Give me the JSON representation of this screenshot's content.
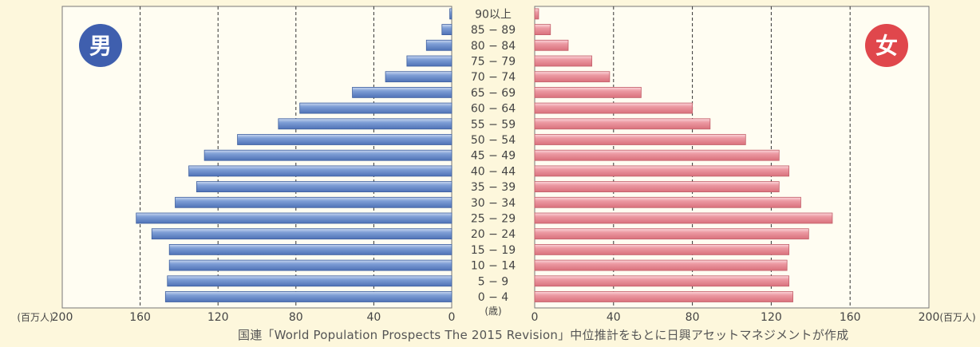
{
  "chart_data": {
    "type": "bar",
    "orientation": "horizontal",
    "layout": "population-pyramid",
    "categories": [
      "0 − 4",
      "5 − 9",
      "10 − 14",
      "15 − 19",
      "20 − 24",
      "25 − 29",
      "30 − 34",
      "35 − 39",
      "40 − 44",
      "45 − 49",
      "50 − 54",
      "55 − 59",
      "60 − 64",
      "65 − 69",
      "70 − 74",
      "75 − 79",
      "80 − 84",
      "85 − 89",
      "90以上"
    ],
    "series": [
      {
        "name": "男",
        "color": "#5b7fc0",
        "values": [
          147,
          146,
          145,
          145,
          154,
          162,
          142,
          131,
          135,
          127,
          110,
          89,
          78,
          51,
          34,
          23,
          13,
          5,
          1
        ]
      },
      {
        "name": "女",
        "color": "#e0878f",
        "values": [
          131,
          129,
          128,
          129,
          139,
          151,
          135,
          124,
          129,
          124,
          107,
          89,
          80,
          54,
          38,
          29,
          17,
          8,
          2
        ]
      }
    ],
    "xlim": [
      0,
      200
    ],
    "x_ticks": [
      "200",
      "160",
      "120",
      "80",
      "40",
      "0",
      "0",
      "40",
      "80",
      "120",
      "160",
      "200"
    ],
    "x_unit": "(百万人)",
    "age_unit": "(歳)",
    "grid": "dashed vertical lines at 40, 80 and 120, 160",
    "badges": {
      "male": {
        "label": "男",
        "color": "#3f5fae"
      },
      "female": {
        "label": "女",
        "color": "#e0474c"
      }
    }
  },
  "source_note": "国連「World Population Prospects  The 2015 Revision」中位推計をもとに日興アセットマネジメントが作成"
}
